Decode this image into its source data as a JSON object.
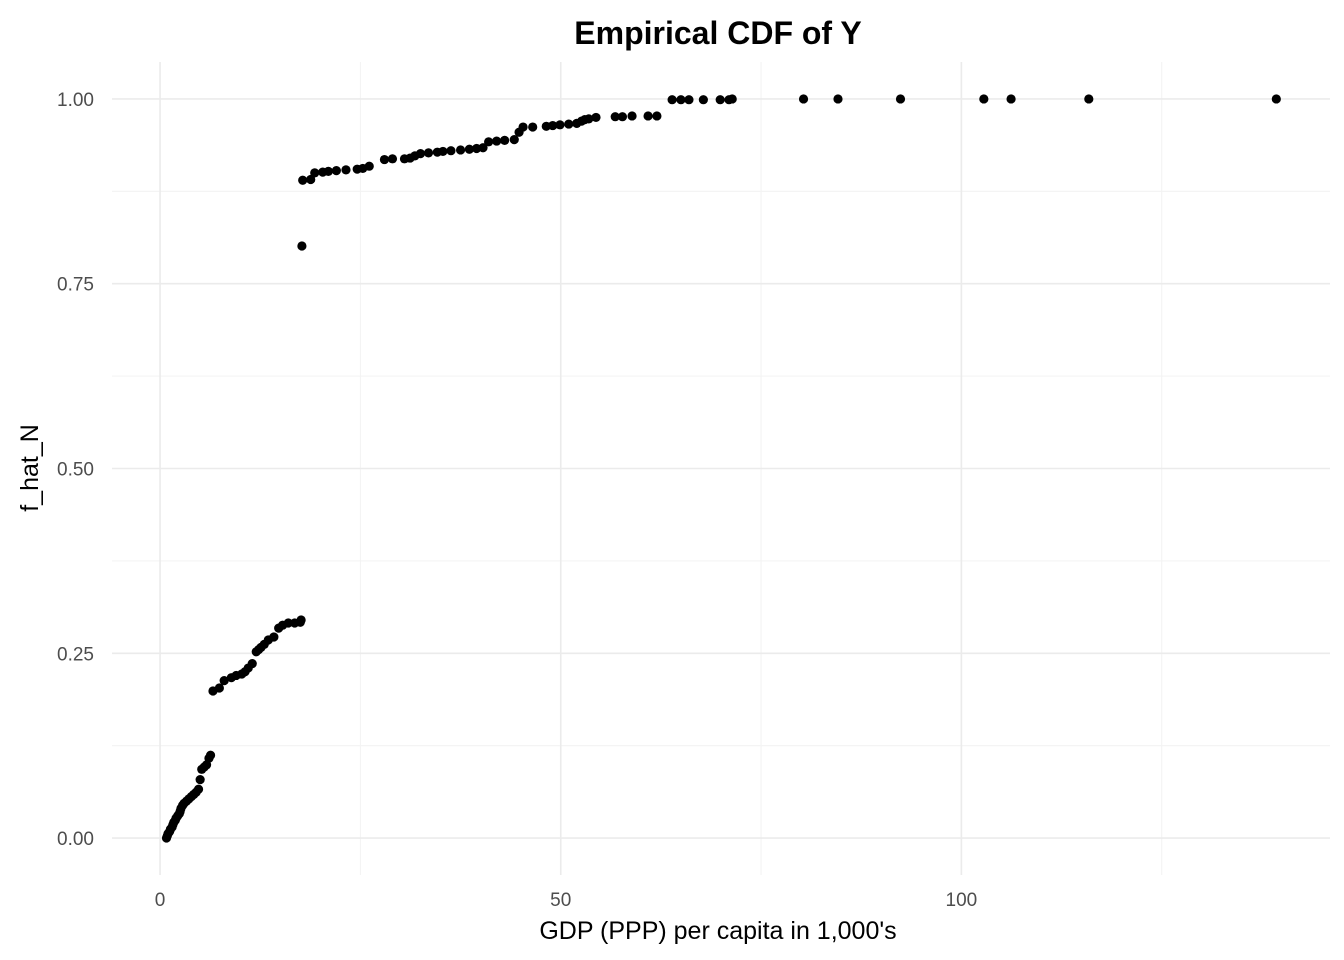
{
  "chart_data": {
    "type": "scatter",
    "title": "Empirical CDF of Y",
    "xlabel": "GDP (PPP) per capita in 1,000's",
    "ylabel": "f_hat_N",
    "xlim": [
      -6,
      146
    ],
    "ylim": [
      -0.05,
      1.05
    ],
    "x_ticks": [
      0,
      50,
      100
    ],
    "x_tick_labels": [
      "0",
      "50",
      "100"
    ],
    "y_ticks": [
      0,
      0.25,
      0.5,
      0.75,
      1.0
    ],
    "y_tick_labels": [
      "0.00",
      "0.25",
      "0.50",
      "0.75",
      "1.00"
    ],
    "grid": true,
    "color": "#000000",
    "series": [
      {
        "points": [
          [
            0.8,
            0.0
          ],
          [
            0.9,
            0.003
          ],
          [
            1.0,
            0.006
          ],
          [
            1.2,
            0.009
          ],
          [
            1.3,
            0.012
          ],
          [
            1.5,
            0.015
          ],
          [
            1.6,
            0.018
          ],
          [
            1.7,
            0.021
          ],
          [
            1.9,
            0.024
          ],
          [
            2.0,
            0.027
          ],
          [
            2.2,
            0.03
          ],
          [
            2.4,
            0.033
          ],
          [
            2.5,
            0.036
          ],
          [
            2.6,
            0.04
          ],
          [
            2.8,
            0.044
          ],
          [
            3.0,
            0.047
          ],
          [
            3.3,
            0.05
          ],
          [
            3.6,
            0.053
          ],
          [
            3.9,
            0.056
          ],
          [
            4.2,
            0.059
          ],
          [
            4.5,
            0.062
          ],
          [
            4.8,
            0.066
          ],
          [
            5.0,
            0.079
          ],
          [
            5.2,
            0.093
          ],
          [
            5.5,
            0.096
          ],
          [
            5.8,
            0.099
          ],
          [
            6.1,
            0.108
          ],
          [
            6.3,
            0.112
          ],
          [
            6.6,
            0.199
          ],
          [
            7.4,
            0.203
          ],
          [
            8.0,
            0.213
          ],
          [
            8.9,
            0.217
          ],
          [
            9.5,
            0.22
          ],
          [
            10.2,
            0.222
          ],
          [
            10.6,
            0.225
          ],
          [
            11.0,
            0.23
          ],
          [
            11.5,
            0.236
          ],
          [
            12.0,
            0.252
          ],
          [
            12.3,
            0.255
          ],
          [
            12.6,
            0.258
          ],
          [
            13.0,
            0.262
          ],
          [
            13.5,
            0.268
          ],
          [
            14.2,
            0.272
          ],
          [
            14.8,
            0.284
          ],
          [
            15.3,
            0.288
          ],
          [
            16.0,
            0.291
          ],
          [
            16.8,
            0.291
          ],
          [
            17.5,
            0.292
          ],
          [
            17.6,
            0.295
          ],
          [
            17.7,
            0.801
          ],
          [
            17.8,
            0.89
          ],
          [
            18.8,
            0.891
          ],
          [
            19.3,
            0.9
          ],
          [
            20.3,
            0.901
          ],
          [
            21.0,
            0.902
          ],
          [
            22.0,
            0.903
          ],
          [
            23.2,
            0.904
          ],
          [
            24.6,
            0.905
          ],
          [
            25.3,
            0.906
          ],
          [
            26.1,
            0.909
          ],
          [
            28.0,
            0.918
          ],
          [
            29.0,
            0.919
          ],
          [
            30.5,
            0.919
          ],
          [
            31.2,
            0.92
          ],
          [
            31.8,
            0.923
          ],
          [
            32.5,
            0.926
          ],
          [
            33.5,
            0.927
          ],
          [
            34.6,
            0.928
          ],
          [
            35.3,
            0.929
          ],
          [
            36.3,
            0.93
          ],
          [
            37.5,
            0.931
          ],
          [
            38.6,
            0.932
          ],
          [
            39.5,
            0.933
          ],
          [
            40.3,
            0.934
          ],
          [
            41.0,
            0.942
          ],
          [
            42.0,
            0.943
          ],
          [
            43.0,
            0.944
          ],
          [
            44.2,
            0.945
          ],
          [
            44.8,
            0.955
          ],
          [
            45.3,
            0.962
          ],
          [
            46.5,
            0.962
          ],
          [
            48.2,
            0.963
          ],
          [
            49.0,
            0.964
          ],
          [
            49.9,
            0.965
          ],
          [
            51.0,
            0.966
          ],
          [
            52.0,
            0.967
          ],
          [
            52.6,
            0.97
          ],
          [
            53.0,
            0.972
          ],
          [
            53.5,
            0.973
          ],
          [
            54.4,
            0.975
          ],
          [
            56.8,
            0.976
          ],
          [
            57.7,
            0.976
          ],
          [
            58.9,
            0.977
          ],
          [
            60.9,
            0.977
          ],
          [
            62.0,
            0.977
          ],
          [
            63.9,
            0.999
          ],
          [
            65.0,
            0.999
          ],
          [
            66.0,
            0.999
          ],
          [
            67.8,
            0.999
          ],
          [
            69.9,
            0.999
          ],
          [
            71.0,
            0.999
          ],
          [
            71.4,
            1.0
          ],
          [
            80.3,
            1.0
          ],
          [
            84.6,
            1.0
          ],
          [
            92.4,
            1.0
          ],
          [
            102.8,
            1.0
          ],
          [
            106.2,
            1.0
          ],
          [
            115.9,
            1.0
          ],
          [
            139.3,
            1.0
          ]
        ]
      }
    ]
  }
}
